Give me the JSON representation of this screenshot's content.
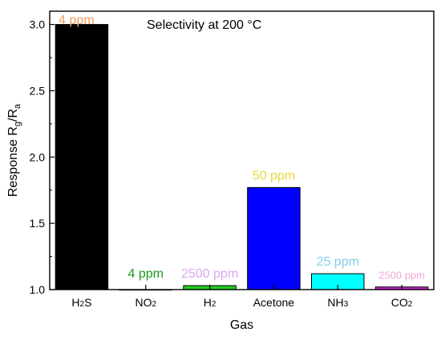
{
  "chart_data": {
    "type": "bar",
    "title": "Selectivity at 200 °C",
    "xlabel": "Gas",
    "ylabel": {
      "base": "Response R",
      "sub1": "g",
      "mid": "/R",
      "sub2": "a"
    },
    "categories": [
      {
        "main": "H",
        "sub": "2",
        "tail": "S"
      },
      {
        "main": "NO",
        "sub": "2",
        "tail": ""
      },
      {
        "main": "H",
        "sub": "2",
        "tail": ""
      },
      {
        "main": "Acetone",
        "sub": "",
        "tail": ""
      },
      {
        "main": "NH",
        "sub": "3",
        "tail": ""
      },
      {
        "main": "CO",
        "sub": "2",
        "tail": ""
      }
    ],
    "values": [
      3.0,
      1.0,
      1.03,
      1.77,
      1.12,
      1.02
    ],
    "bar_colors": [
      "#000000",
      "#3333cc",
      "#22cc22",
      "#0000ff",
      "#00ffff",
      "#cc22cc"
    ],
    "data_labels": [
      "4 ppm",
      "4 ppm",
      "2500 ppm",
      "50 ppm",
      "25 ppm",
      "2500 ppm"
    ],
    "label_colors": [
      "#f0a060",
      "#1a9a1a",
      "#d8a8ee",
      "#e8d840",
      "#88ccee",
      "#f0a8d8"
    ],
    "ylim": [
      1.0,
      3.1
    ],
    "yticks": [
      "1.0",
      "1.5",
      "2.0",
      "2.5",
      "3.0"
    ],
    "grid": false,
    "legend": false
  }
}
